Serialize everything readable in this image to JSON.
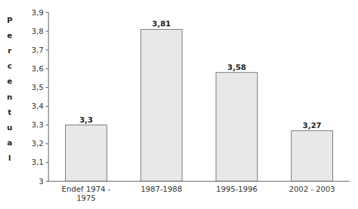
{
  "chart_data": {
    "type": "bar",
    "ylabel": "Percentual",
    "categories": [
      "Endef 1974 -\n1975",
      "1987-1988",
      "1995-1996",
      "2002 - 2003"
    ],
    "values": [
      3.3,
      3.81,
      3.58,
      3.27
    ],
    "value_labels": [
      "3,3",
      "3,81",
      "3,58",
      "3,27"
    ],
    "data_labels": true,
    "color": "#e8e8e8",
    "ylim": [
      3.0,
      3.9
    ],
    "yticks": [
      3,
      {
        "value": 3.1,
        "label": "3,1"
      },
      {
        "value": 3.2,
        "label": "3,2"
      },
      {
        "value": 3.3,
        "label": "3,3"
      },
      {
        "value": 3.4,
        "label": "3,4"
      },
      {
        "value": 3.5,
        "label": "3,5"
      },
      {
        "value": 3.6,
        "label": "3,6"
      },
      {
        "value": 3.7,
        "label": "3,7"
      },
      {
        "value": 3.8,
        "label": "3,8"
      },
      {
        "value": 3.9,
        "label": "3,9"
      }
    ],
    "grid": false
  }
}
